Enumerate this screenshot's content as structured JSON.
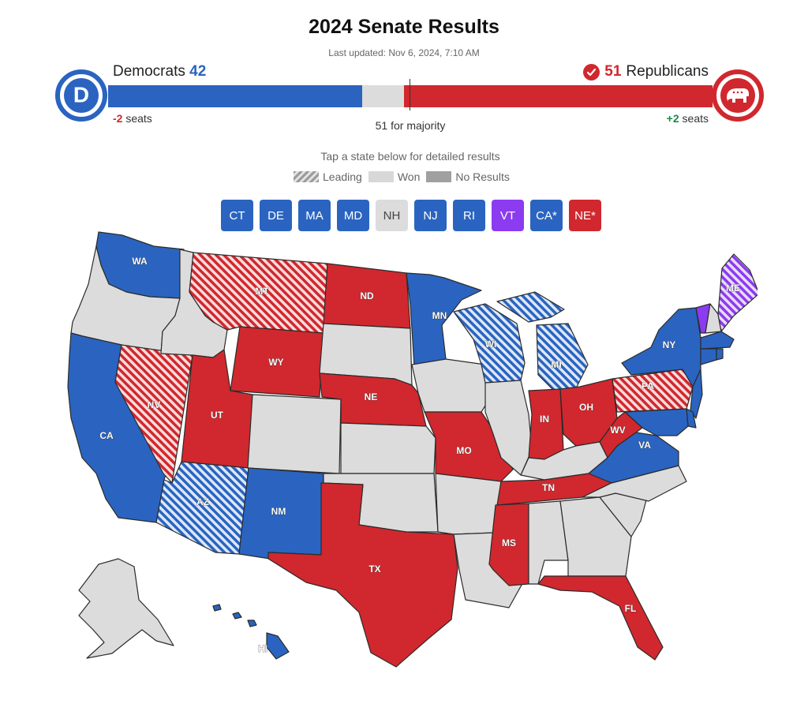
{
  "header": {
    "title": "2024 Senate Results",
    "updated": "Last updated: Nov 6, 2024, 7:10 AM"
  },
  "parties": {
    "dem": {
      "name": "Democrats",
      "seats": "42",
      "change_value": "-2",
      "change_unit": "seats",
      "logo_letter": "D"
    },
    "rep": {
      "name": "Republicans",
      "seats": "51",
      "change_value": "+2",
      "change_unit": "seats"
    }
  },
  "seat_bar": {
    "dem": 42,
    "rep": 51,
    "total": 100,
    "majority": 51
  },
  "majority_label": "51 for majority",
  "instructions": "Tap a state below for detailed results",
  "legend": {
    "leading": "Leading",
    "won": "Won",
    "no_results": "No Results"
  },
  "colors": {
    "dem": "#2a64c0",
    "rep": "#d0282e",
    "ind": "#8b3bf0",
    "no_race": "#dcdcdc",
    "dem_lead_stripe": "#dde8f8",
    "rep_lead_stripe": "#f7dcdc",
    "ind_lead_stripe": "#eadcf9"
  },
  "small_states": [
    {
      "label": "CT",
      "status": "dem"
    },
    {
      "label": "DE",
      "status": "dem"
    },
    {
      "label": "MA",
      "status": "dem"
    },
    {
      "label": "MD",
      "status": "dem"
    },
    {
      "label": "NH",
      "status": "none"
    },
    {
      "label": "NJ",
      "status": "dem"
    },
    {
      "label": "RI",
      "status": "dem"
    },
    {
      "label": "VT",
      "status": "ind"
    },
    {
      "label": "CA*",
      "status": "dem"
    },
    {
      "label": "NE*",
      "status": "rep"
    }
  ],
  "map": {
    "states": [
      {
        "id": "WA",
        "label": "WA",
        "status": "dem"
      },
      {
        "id": "OR",
        "label": "",
        "status": "none"
      },
      {
        "id": "CA",
        "label": "CA",
        "status": "dem"
      },
      {
        "id": "NV",
        "label": "NV",
        "status": "rep-lead"
      },
      {
        "id": "ID",
        "label": "",
        "status": "none"
      },
      {
        "id": "MT",
        "label": "MT",
        "status": "rep-lead"
      },
      {
        "id": "WY",
        "label": "WY",
        "status": "rep"
      },
      {
        "id": "UT",
        "label": "UT",
        "status": "rep"
      },
      {
        "id": "AZ",
        "label": "AZ",
        "status": "dem-lead"
      },
      {
        "id": "CO",
        "label": "",
        "status": "none"
      },
      {
        "id": "NM",
        "label": "NM",
        "status": "dem"
      },
      {
        "id": "ND",
        "label": "ND",
        "status": "rep"
      },
      {
        "id": "SD",
        "label": "",
        "status": "none"
      },
      {
        "id": "NE",
        "label": "NE",
        "status": "rep"
      },
      {
        "id": "KS",
        "label": "",
        "status": "none"
      },
      {
        "id": "OK",
        "label": "",
        "status": "none"
      },
      {
        "id": "TX",
        "label": "TX",
        "status": "rep"
      },
      {
        "id": "MN",
        "label": "MN",
        "status": "dem"
      },
      {
        "id": "IA",
        "label": "",
        "status": "none"
      },
      {
        "id": "MO",
        "label": "MO",
        "status": "rep"
      },
      {
        "id": "AR",
        "label": "",
        "status": "none"
      },
      {
        "id": "LA",
        "label": "",
        "status": "none"
      },
      {
        "id": "WI",
        "label": "WI",
        "status": "dem-lead"
      },
      {
        "id": "MI",
        "label": "MI",
        "status": "dem-lead"
      },
      {
        "id": "IL",
        "label": "",
        "status": "none"
      },
      {
        "id": "IN",
        "label": "IN",
        "status": "rep"
      },
      {
        "id": "OH",
        "label": "OH",
        "status": "rep"
      },
      {
        "id": "KY",
        "label": "",
        "status": "none"
      },
      {
        "id": "TN",
        "label": "TN",
        "status": "rep"
      },
      {
        "id": "MS",
        "label": "MS",
        "status": "rep"
      },
      {
        "id": "AL",
        "label": "",
        "status": "none"
      },
      {
        "id": "GA",
        "label": "",
        "status": "none"
      },
      {
        "id": "FL",
        "label": "FL",
        "status": "rep"
      },
      {
        "id": "SC",
        "label": "",
        "status": "none"
      },
      {
        "id": "NC",
        "label": "",
        "status": "none"
      },
      {
        "id": "VA",
        "label": "VA",
        "status": "dem"
      },
      {
        "id": "WV",
        "label": "WV",
        "status": "rep"
      },
      {
        "id": "PA",
        "label": "PA",
        "status": "rep-lead"
      },
      {
        "id": "NY",
        "label": "NY",
        "status": "dem"
      },
      {
        "id": "VT",
        "label": "",
        "status": "ind"
      },
      {
        "id": "NH",
        "label": "",
        "status": "none"
      },
      {
        "id": "ME",
        "label": "ME",
        "status": "ind-lead"
      },
      {
        "id": "MA",
        "label": "",
        "status": "dem"
      },
      {
        "id": "CT",
        "label": "",
        "status": "dem"
      },
      {
        "id": "RI",
        "label": "",
        "status": "dem"
      },
      {
        "id": "NJ",
        "label": "",
        "status": "dem"
      },
      {
        "id": "DE",
        "label": "",
        "status": "dem"
      },
      {
        "id": "MD",
        "label": "",
        "status": "dem"
      },
      {
        "id": "AK",
        "label": "",
        "status": "none"
      },
      {
        "id": "HI",
        "label": "HI",
        "status": "dem"
      }
    ]
  }
}
